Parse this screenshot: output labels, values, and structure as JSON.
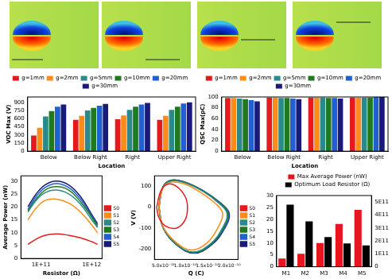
{
  "chart_data": [
    {
      "type": "bar",
      "y_label": "VOC Max (V)",
      "x_label": "Location",
      "categories": [
        "Below",
        "Below Right",
        "Right",
        "Upper Right"
      ],
      "series": [
        {
          "name": "g=1mm",
          "color": "#e41a1c",
          "values": [
            290,
            580,
            590,
            580
          ]
        },
        {
          "name": "g=2mm",
          "color": "#ff8c1a",
          "values": [
            430,
            650,
            660,
            650
          ]
        },
        {
          "name": "g=5mm",
          "color": "#2a8a8a",
          "values": [
            640,
            750,
            760,
            760
          ]
        },
        {
          "name": "g=10mm",
          "color": "#1f7a1f",
          "values": [
            740,
            800,
            820,
            820
          ]
        },
        {
          "name": "g=20mm",
          "color": "#2060d0",
          "values": [
            820,
            840,
            860,
            880
          ]
        },
        {
          "name": "g=30mm",
          "color": "#1a1a7a",
          "values": [
            860,
            870,
            890,
            900
          ]
        }
      ],
      "ylim": [
        0,
        1000
      ],
      "yticks": [
        0,
        150,
        300,
        450,
        600,
        750,
        900
      ],
      "legend": "top",
      "grid": false
    },
    {
      "type": "bar",
      "y_label": "QSC Max(pC)",
      "x_label": "Location",
      "categories": [
        "Below",
        "Below Right",
        "Right",
        "Upper Right"
      ],
      "series": [
        {
          "name": "g=1mm",
          "color": "#e41a1c",
          "values": [
            98,
            99,
            99,
            99
          ]
        },
        {
          "name": "g=2mm",
          "color": "#ff8c1a",
          "values": [
            98,
            99,
            99,
            99
          ]
        },
        {
          "name": "g=5mm",
          "color": "#2a8a8a",
          "values": [
            97,
            98,
            99,
            99
          ]
        },
        {
          "name": "g=10mm",
          "color": "#1f7a1f",
          "values": [
            96,
            98,
            98,
            99
          ]
        },
        {
          "name": "g=20mm",
          "color": "#2060d0",
          "values": [
            94,
            97,
            98,
            100
          ]
        },
        {
          "name": "g=30mm",
          "color": "#1a1a7a",
          "values": [
            92,
            96,
            97,
            100
          ]
        }
      ],
      "ylim": [
        0,
        100
      ],
      "yticks": [
        0,
        20,
        40,
        60,
        80,
        100
      ],
      "legend": "top",
      "grid": false
    },
    {
      "type": "line",
      "x_label": "Resistor (Ω)",
      "y_label": "Average Power (nW)",
      "x": [
        55000000000,
        80000000000,
        120000000000,
        200000000000,
        350000000000,
        600000000000,
        1000000000000,
        1300000000000
      ],
      "series": [
        {
          "name": "S0",
          "color": "#e41a1c",
          "values": [
            5.5,
            7.5,
            9,
            9.5,
            9,
            8,
            6.5,
            5.5
          ]
        },
        {
          "name": "S1",
          "color": "#ff8c1a",
          "values": [
            15,
            19.5,
            22.5,
            23,
            21.5,
            18,
            13,
            10
          ]
        },
        {
          "name": "S2",
          "color": "#2a8a8a",
          "values": [
            18,
            22.5,
            25.5,
            26.5,
            25,
            21,
            15,
            12
          ]
        },
        {
          "name": "S3",
          "color": "#1f7a1f",
          "values": [
            18.5,
            23,
            26.5,
            27.8,
            26.5,
            22,
            16,
            12.5
          ]
        },
        {
          "name": "S4",
          "color": "#2060d0",
          "values": [
            19,
            24,
            27.5,
            29,
            27.5,
            23,
            16.5,
            13
          ]
        },
        {
          "name": "S5",
          "color": "#1a1a7a",
          "values": [
            20,
            25,
            28.5,
            30,
            28.5,
            24,
            17,
            13.5
          ]
        }
      ],
      "log": "x",
      "xlim": [
        40000000000,
        1600000000000
      ],
      "xticks": [
        {
          "value": 100000000000,
          "label": "1E+11"
        },
        {
          "value": 1000000000000,
          "label": "1E+12"
        }
      ],
      "ylim": [
        0,
        32
      ],
      "yticks": [
        0,
        5,
        10,
        15,
        20,
        25,
        30
      ],
      "legend": "right",
      "grid": false
    },
    {
      "type": "scatter",
      "line_style": "solid",
      "x_label": "Q (C)",
      "y_label": "V (V)",
      "series": [
        {
          "name": "S0",
          "color": "#e41a1c",
          "x": [
            3.5e-11,
            4.5e-11,
            6e-11,
            8e-11,
            1e-10,
            1.05e-10,
            1e-10,
            8e-11,
            5.5e-11,
            4e-11,
            3.5e-11
          ],
          "values": [
            0,
            80,
            110,
            100,
            50,
            0,
            -60,
            -100,
            -90,
            -50,
            0
          ]
        },
        {
          "name": "S1",
          "color": "#ff8c1a",
          "x": [
            4e-11,
            5e-11,
            7e-11,
            1e-10,
            1.35e-10,
            1.7e-10,
            1.85e-10,
            1.75e-10,
            1.5e-10,
            1.15e-10,
            8e-11,
            5e-11,
            4e-11
          ],
          "values": [
            0,
            95,
            120,
            110,
            70,
            15,
            -30,
            -95,
            -170,
            -205,
            -170,
            -95,
            0
          ]
        },
        {
          "name": "S2",
          "color": "#2a8a8a",
          "x": [
            4e-11,
            5e-11,
            7e-11,
            1e-10,
            1.4e-10,
            1.77e-10,
            1.95e-10,
            1.85e-10,
            1.57e-10,
            1.18e-10,
            8e-11,
            5e-11,
            4e-11
          ],
          "values": [
            0,
            98,
            126,
            116,
            76,
            18,
            -30,
            -98,
            -176,
            -214,
            -176,
            -98,
            0
          ]
        },
        {
          "name": "S3",
          "color": "#1f7a1f",
          "x": [
            4e-11,
            5e-11,
            7e-11,
            1e-10,
            1.4e-10,
            1.79e-10,
            1.97e-10,
            1.87e-10,
            1.58e-10,
            1.19e-10,
            8e-11,
            5e-11,
            4e-11
          ],
          "values": [
            0,
            99,
            128,
            118,
            78,
            19,
            -30,
            -99,
            -178,
            -217,
            -178,
            -99,
            0
          ]
        },
        {
          "name": "S4",
          "color": "#2060d0",
          "x": [
            4e-11,
            5e-11,
            7e-11,
            1e-10,
            1.4e-10,
            1.8e-10,
            1.99e-10,
            1.89e-10,
            1.59e-10,
            1.2e-10,
            8e-11,
            5e-11,
            4e-11
          ],
          "values": [
            0,
            100,
            129,
            119,
            79,
            20,
            -30,
            -100,
            -179,
            -219,
            -179,
            -100,
            0
          ]
        },
        {
          "name": "S5",
          "color": "#1a1a7a",
          "x": [
            4e-11,
            5e-11,
            7e-11,
            1e-10,
            1.4e-10,
            1.8e-10,
            2e-10,
            1.9e-10,
            1.6e-10,
            1.2e-10,
            8e-11,
            5e-11,
            4e-11
          ],
          "values": [
            0,
            100,
            130,
            120,
            80,
            20,
            -30,
            -100,
            -180,
            -220,
            -180,
            -100,
            0
          ]
        }
      ],
      "xlim": [
        3e-11,
        2.2e-10
      ],
      "xticks": [
        {
          "value": 5e-11,
          "label": "5.0x10⁻¹¹"
        },
        {
          "value": 1e-10,
          "label": "1.0x10⁻¹⁰"
        },
        {
          "value": 1.5e-10,
          "label": "1.5x10⁻¹⁰"
        },
        {
          "value": 2e-10,
          "label": "2.0x10⁻¹⁰"
        }
      ],
      "ylim": [
        -250,
        150
      ],
      "yticks": [
        -200,
        -100,
        0,
        100
      ],
      "legend": "right",
      "grid": false
    },
    {
      "type": "bar",
      "categories": [
        "M1",
        "M2",
        "M3",
        "M4",
        "M5"
      ],
      "series": [
        {
          "name": "Max Average Power (nW)",
          "color": "#e8141e",
          "values": [
            3.5,
            5.5,
            10,
            18,
            24
          ]
        },
        {
          "name": "Optimum Load Resistor (Ω)",
          "color": "#000000",
          "axis": "y2",
          "values": [
            480000000000,
            350000000000,
            230000000000,
            180000000000,
            165000000000
          ]
        }
      ],
      "ylim": [
        0,
        30
      ],
      "yticks": [
        0,
        5,
        10,
        15,
        20,
        25,
        30
      ],
      "y2lim": [
        0,
        550000000000
      ],
      "y2ticks": [
        0,
        {
          "value": 100000000000,
          "label": "1E11"
        },
        {
          "value": 200000000000,
          "label": "2E11"
        },
        {
          "value": 300000000000,
          "label": "3E11"
        },
        {
          "value": 400000000000,
          "label": "4E11"
        },
        {
          "value": 500000000000,
          "label": "5E11"
        }
      ],
      "legend": "top",
      "grid": false
    }
  ]
}
